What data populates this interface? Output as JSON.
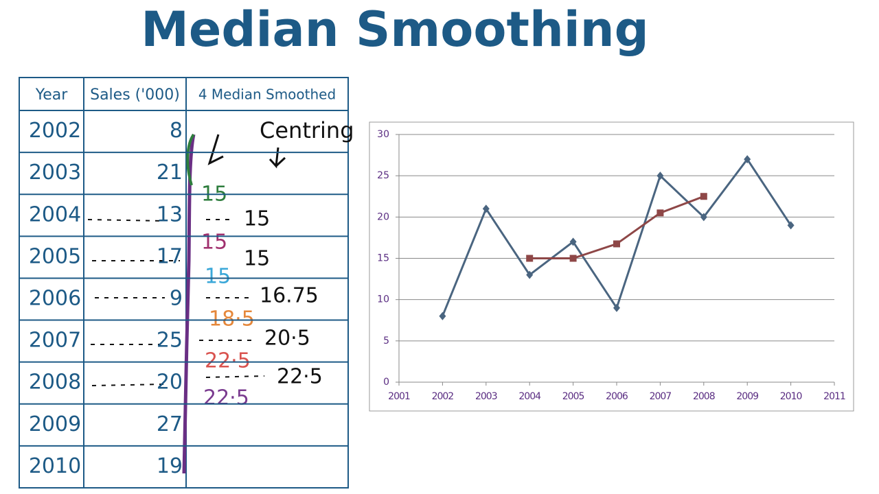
{
  "title": "Median Smoothing",
  "table": {
    "header": [
      "Year",
      "Sales ('000)",
      "4 Median Smoothed"
    ],
    "rows": [
      [
        "2002",
        "8"
      ],
      [
        "2003",
        "21"
      ],
      [
        "2004",
        "13"
      ],
      [
        "2005",
        "17"
      ],
      [
        "2006",
        "9"
      ],
      [
        "2007",
        "25"
      ],
      [
        "2008",
        "20"
      ],
      [
        "2009",
        "27"
      ],
      [
        "2010",
        "19"
      ]
    ]
  },
  "annotations": {
    "centring": "Centring",
    "medians": [
      "15",
      "15",
      "15",
      "18·5",
      "22·5",
      "22·5"
    ],
    "centred": [
      "15",
      "15",
      "16.75",
      "20·5",
      "22·5"
    ]
  },
  "chart_data": {
    "type": "line",
    "xlim": [
      2001,
      2011
    ],
    "xticks": [
      2001,
      2002,
      2003,
      2004,
      2005,
      2006,
      2007,
      2008,
      2009,
      2010,
      2011
    ],
    "ylim": [
      0,
      30
    ],
    "yticks": [
      0,
      5,
      10,
      15,
      20,
      25,
      30
    ],
    "grid": true,
    "series": [
      {
        "color": "#4a6580",
        "marker": "diamond",
        "x": [
          2002,
          2003,
          2004,
          2005,
          2006,
          2007,
          2008,
          2009,
          2010
        ],
        "values": [
          8,
          21,
          13,
          17,
          9,
          25,
          20,
          27,
          19
        ]
      },
      {
        "color": "#8e4747",
        "marker": "square",
        "x": [
          2004,
          2005,
          2006,
          2007,
          2008
        ],
        "values": [
          15,
          15,
          16.75,
          20.5,
          22.5
        ]
      }
    ]
  }
}
